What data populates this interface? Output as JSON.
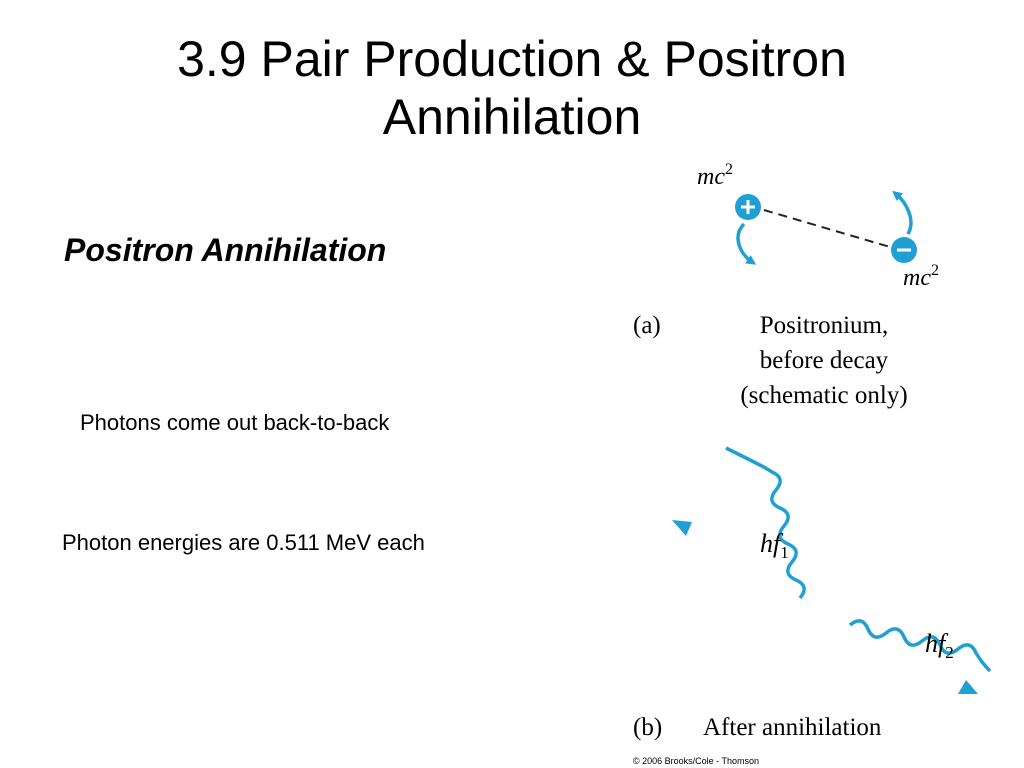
{
  "slide": {
    "title_line1": "3.9 Pair Production & Positron",
    "title_line2": "Annihilation",
    "subtitle": "Positron Annihilation",
    "bullets": [
      "Photons come out back-to-back",
      "Photon energies are 0.511 MeV each"
    ]
  },
  "figure": {
    "accent_color": "#1f9fd4",
    "panel_a": {
      "label": "(a)",
      "caption_lines": [
        "Positronium,",
        "before decay",
        "(schematic only)"
      ],
      "positron_energy_base": "mc",
      "positron_energy_exp": "2",
      "electron_energy_base": "mc",
      "electron_energy_exp": "2",
      "positron_symbol": "plus-icon",
      "electron_symbol": "minus-icon"
    },
    "panel_b": {
      "label": "(b)",
      "caption": "After annihilation",
      "photon1_base": "hf",
      "photon1_sub": "1",
      "photon2_base": "hf",
      "photon2_sub": "2"
    },
    "copyright": "© 2006 Brooks/Cole - Thomson"
  }
}
